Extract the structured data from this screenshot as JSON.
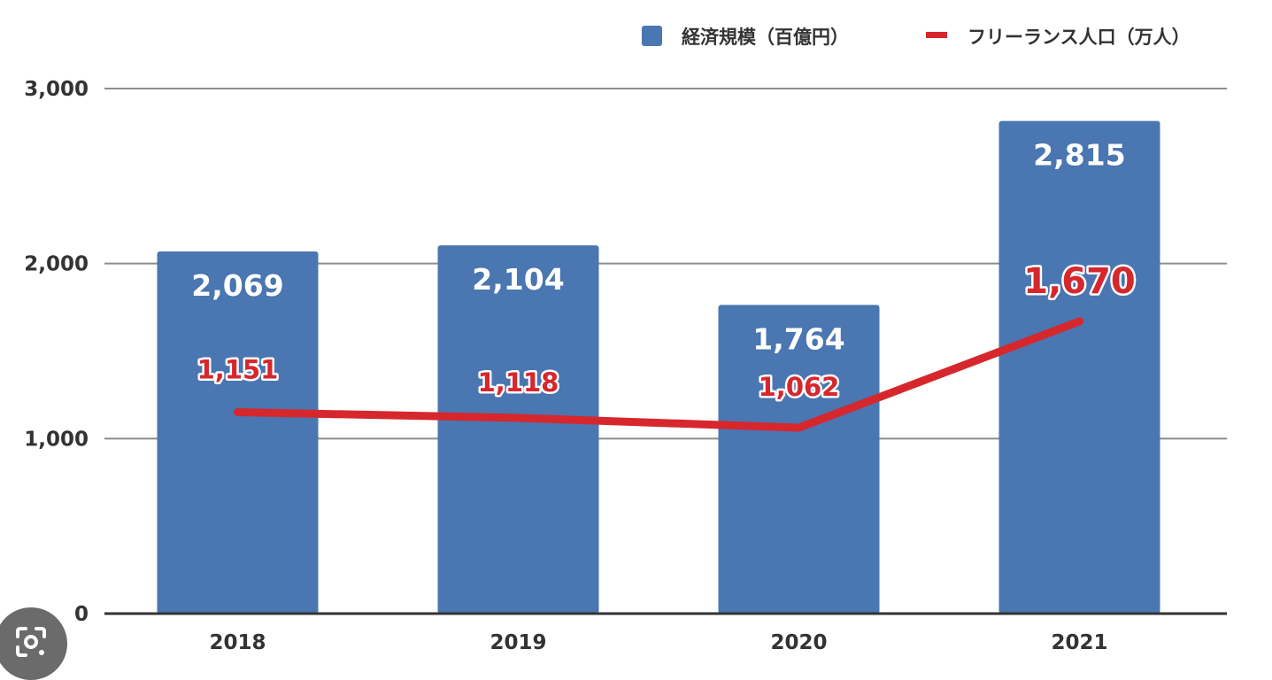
{
  "chart_data": {
    "type": "bar",
    "categories": [
      "2018",
      "2019",
      "2020",
      "2021"
    ],
    "ylim": [
      0,
      3000
    ],
    "yticks": [
      "0",
      "1,000",
      "2,000",
      "3,000"
    ],
    "grid": true,
    "legend_position": "top-right",
    "series": [
      {
        "name": "経済規模（百億円）",
        "type": "bar",
        "color": "#4a76b1",
        "values": [
          2069,
          2104,
          1764,
          2815
        ],
        "labels": [
          "2,069",
          "2,104",
          "1,764",
          "2,815"
        ]
      },
      {
        "name": "フリーランス人口（万人）",
        "type": "line",
        "color": "#d6272d",
        "values": [
          1151,
          1118,
          1062,
          1670
        ],
        "labels": [
          "1,151",
          "1,118",
          "1,062",
          "1,670"
        ]
      }
    ]
  },
  "overlay": {
    "lens_icon": "google-lens-icon"
  }
}
